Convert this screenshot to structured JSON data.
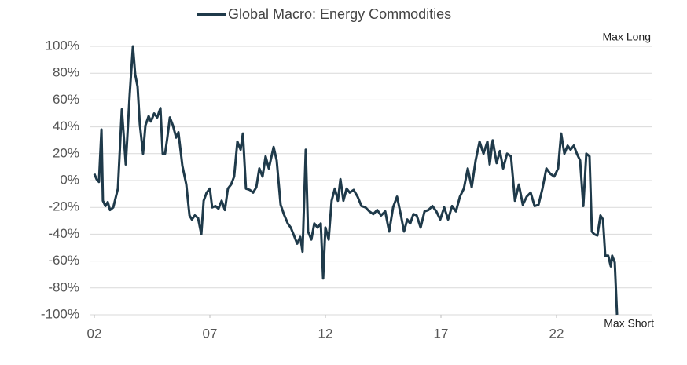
{
  "chart_data": {
    "type": "line",
    "annotations": [
      "Max Long",
      "Max Short"
    ],
    "xlim": [
      2,
      26.15
    ],
    "xticks": [
      {
        "value": 2,
        "label": "02"
      },
      {
        "value": 7,
        "label": "07"
      },
      12,
      17,
      22
    ],
    "ylim": [
      -100,
      100
    ],
    "yticks": [
      {
        "value": -100,
        "label": "-100%"
      },
      {
        "value": -80,
        "label": "-80%"
      },
      {
        "value": -60,
        "label": "-60%"
      },
      {
        "value": -40,
        "label": "-40%"
      },
      {
        "value": -20,
        "label": "-20%"
      },
      {
        "value": 0,
        "label": "0%"
      },
      {
        "value": 20,
        "label": "20%"
      },
      {
        "value": 40,
        "label": "40%"
      },
      {
        "value": 60,
        "label": "60%"
      },
      {
        "value": 80,
        "label": "80%"
      },
      {
        "value": 100,
        "label": "100%"
      }
    ],
    "grid": true,
    "legend": "top",
    "x": [
      2.0,
      2.1,
      2.2,
      2.31,
      2.37,
      2.48,
      2.58,
      2.68,
      2.82,
      3.02,
      3.19,
      3.36,
      3.53,
      3.67,
      3.77,
      3.87,
      3.97,
      4.11,
      4.21,
      4.35,
      4.45,
      4.59,
      4.72,
      4.86,
      4.96,
      5.06,
      5.16,
      5.27,
      5.4,
      5.54,
      5.64,
      5.81,
      5.98,
      6.12,
      6.22,
      6.35,
      6.49,
      6.63,
      6.73,
      6.86,
      7.0,
      7.1,
      7.24,
      7.37,
      7.51,
      7.65,
      7.78,
      7.92,
      8.05,
      8.19,
      8.33,
      8.43,
      8.56,
      8.73,
      8.87,
      9.01,
      9.14,
      9.28,
      9.41,
      9.55,
      9.76,
      9.89,
      10.06,
      10.2,
      10.37,
      10.5,
      10.64,
      10.78,
      10.91,
      11.01,
      11.15,
      11.25,
      11.39,
      11.52,
      11.66,
      11.8,
      11.9,
      12.0,
      12.14,
      12.27,
      12.41,
      12.54,
      12.65,
      12.78,
      12.92,
      13.05,
      13.22,
      13.39,
      13.56,
      13.73,
      13.9,
      14.07,
      14.24,
      14.41,
      14.59,
      14.76,
      14.93,
      15.1,
      15.27,
      15.4,
      15.54,
      15.67,
      15.81,
      15.95,
      16.12,
      16.29,
      16.46,
      16.63,
      16.8,
      16.97,
      17.14,
      17.31,
      17.48,
      17.65,
      17.82,
      17.99,
      18.16,
      18.33,
      18.5,
      18.67,
      18.84,
      19.01,
      19.11,
      19.24,
      19.41,
      19.55,
      19.69,
      19.86,
      20.03,
      20.2,
      20.37,
      20.54,
      20.71,
      20.88,
      21.05,
      21.22,
      21.39,
      21.56,
      21.73,
      21.9,
      22.07,
      22.2,
      22.34,
      22.48,
      22.61,
      22.75,
      22.88,
      23.02,
      23.16,
      23.29,
      23.43,
      23.53,
      23.63,
      23.77,
      23.9,
      24.01,
      24.11,
      24.24,
      24.35,
      24.41,
      24.52,
      24.62
    ],
    "series": [
      {
        "name": "Global Macro: Energy Commodities",
        "color": "#1f3a4a",
        "values": [
          5,
          1,
          -1,
          38,
          -15,
          -19,
          -16,
          -22,
          -20,
          -6,
          53,
          12,
          64,
          100,
          79,
          70,
          42,
          20,
          41,
          48,
          44,
          50,
          47,
          54,
          20,
          20,
          32,
          47,
          41,
          32,
          36,
          11,
          -3,
          -26,
          -29,
          -26,
          -28,
          -40,
          -15,
          -9,
          -6,
          -20,
          -19,
          -21,
          -15,
          -22,
          -6,
          -3,
          3,
          29,
          23,
          35,
          -6,
          -7,
          -9,
          -5,
          9,
          3,
          18,
          9,
          25,
          15,
          -18,
          -25,
          -32,
          -35,
          -41,
          -47,
          -42,
          -53,
          23,
          -38,
          -44,
          -32,
          -35,
          -32,
          -73,
          -35,
          -44,
          -15,
          -6,
          -15,
          1,
          -15,
          -6,
          -9,
          -7,
          -12,
          -19,
          -20,
          -23,
          -25,
          -22,
          -26,
          -23,
          -38,
          -20,
          -12,
          -26,
          -38,
          -29,
          -32,
          -25,
          -26,
          -35,
          -23,
          -22,
          -19,
          -23,
          -29,
          -20,
          -29,
          -19,
          -23,
          -12,
          -6,
          9,
          -5,
          15,
          29,
          20,
          29,
          12,
          30,
          13,
          22,
          9,
          20,
          18,
          -15,
          -3,
          -18,
          -12,
          -9,
          -19,
          -18,
          -6,
          9,
          5,
          3,
          9,
          35,
          20,
          26,
          23,
          26,
          20,
          15,
          -19,
          20,
          18,
          -38,
          -40,
          -41,
          -26,
          -29,
          -56,
          -56,
          -64,
          -56,
          -61,
          -100
        ]
      }
    ]
  }
}
